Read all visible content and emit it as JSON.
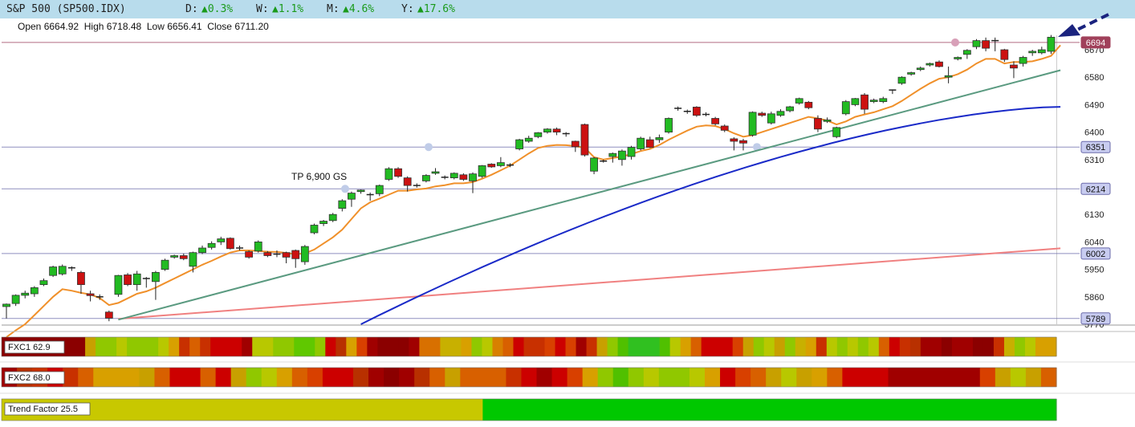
{
  "header": {
    "symbol": "S&P 500 (SP500.IDX)",
    "d_label": "D:",
    "d_value": "▲0.3%",
    "w_label": "W:",
    "w_value": "▲1.1%",
    "m_label": "M:",
    "m_value": "▲4.6%",
    "y_label": "Y:",
    "y_value": "▲17.6%"
  },
  "ohlc": {
    "open_label": "Open",
    "open": "6664.92",
    "high_label": "High",
    "high": "6718.48",
    "low_label": "Low",
    "low": "6656.41",
    "close_label": "Close",
    "close": "6711.20"
  },
  "colors": {
    "up": "#22bb22",
    "down": "#cc1111",
    "ema_fast": "#f0902a",
    "ma_mid": "#1a2ac8",
    "ma_slow": "#f08080",
    "trendline": "#5a9a80",
    "header_bg": "#b8dcec"
  },
  "chart_data": {
    "type": "candlestick",
    "title": "S&P 500 (SP500.IDX)",
    "y_ticks": [
      "6670",
      "6580",
      "6490",
      "6400",
      "6310",
      "6130",
      "6040",
      "5950",
      "5860",
      "5770"
    ],
    "ylim": [
      5770,
      6760
    ],
    "annotation": "TP 6,900 GS",
    "levels": [
      {
        "label": "6694",
        "value": 6694,
        "color": "#9a3a5a"
      },
      {
        "label": "6351",
        "value": 6351,
        "color": "#6a6aaa"
      },
      {
        "label": "6214",
        "value": 6214,
        "color": "#6a6aaa"
      },
      {
        "label": "6002",
        "value": 6002,
        "color": "#6a6aaa"
      },
      {
        "label": "5789",
        "value": 5789,
        "color": "#6a6aaa"
      }
    ],
    "candles": [
      [
        5828,
        5836,
        5789,
        5838
      ],
      [
        5838,
        5865,
        5830,
        5868
      ],
      [
        5865,
        5872,
        5855,
        5880
      ],
      [
        5870,
        5890,
        5860,
        5895
      ],
      [
        5900,
        5913,
        5895,
        5920
      ],
      [
        5930,
        5958,
        5925,
        5962
      ],
      [
        5935,
        5960,
        5930,
        5966
      ],
      [
        5955,
        5955,
        5945,
        5960
      ],
      [
        5940,
        5900,
        5870,
        5945
      ],
      [
        5870,
        5864,
        5845,
        5880
      ],
      [
        5860,
        5860,
        5850,
        5868
      ],
      [
        5810,
        5790,
        5780,
        5815
      ],
      [
        5868,
        5930,
        5860,
        5932
      ],
      [
        5932,
        5900,
        5895,
        5938
      ],
      [
        5900,
        5935,
        5880,
        5945
      ],
      [
        5920,
        5920,
        5890,
        5925
      ],
      [
        5910,
        5940,
        5850,
        5945
      ],
      [
        5950,
        5980,
        5945,
        5985
      ],
      [
        5990,
        5995,
        5985,
        5998
      ],
      [
        5995,
        5985,
        5980,
        6002
      ],
      [
        5960,
        6005,
        5940,
        6008
      ],
      [
        6005,
        6020,
        6000,
        6028
      ],
      [
        6022,
        6035,
        6015,
        6042
      ],
      [
        6040,
        6050,
        6030,
        6057
      ],
      [
        6052,
        6018,
        6015,
        6055
      ],
      [
        6020,
        6020,
        6012,
        6028
      ],
      [
        6008,
        5990,
        5985,
        6012
      ],
      [
        6010,
        6040,
        6005,
        6045
      ],
      [
        6005,
        5995,
        5990,
        6010
      ],
      [
        6000,
        6000,
        5990,
        6012
      ],
      [
        6005,
        5990,
        5970,
        6008
      ],
      [
        6012,
        5985,
        5955,
        6015
      ],
      [
        5975,
        6025,
        5965,
        6030
      ],
      [
        6070,
        6095,
        6065,
        6100
      ],
      [
        6100,
        6108,
        6092,
        6112
      ],
      [
        6110,
        6130,
        6105,
        6135
      ],
      [
        6150,
        6175,
        6140,
        6180
      ],
      [
        6180,
        6200,
        6155,
        6205
      ],
      [
        6205,
        6210,
        6198,
        6212
      ],
      [
        6195,
        6195,
        6175,
        6202
      ],
      [
        6198,
        6225,
        6190,
        6228
      ],
      [
        6245,
        6280,
        6240,
        6285
      ],
      [
        6280,
        6255,
        6250,
        6285
      ],
      [
        6250,
        6225,
        6205,
        6255
      ],
      [
        6225,
        6222,
        6218,
        6232
      ],
      [
        6240,
        6258,
        6235,
        6262
      ],
      [
        6265,
        6270,
        6260,
        6282
      ],
      [
        6250,
        6252,
        6245,
        6258
      ],
      [
        6250,
        6265,
        6245,
        6268
      ],
      [
        6260,
        6245,
        6240,
        6265
      ],
      [
        6240,
        6263,
        6200,
        6268
      ],
      [
        6255,
        6290,
        6250,
        6292
      ],
      [
        6295,
        6286,
        6283,
        6298
      ],
      [
        6290,
        6300,
        6285,
        6318
      ],
      [
        6292,
        6290,
        6285,
        6298
      ],
      [
        6345,
        6375,
        6340,
        6378
      ],
      [
        6370,
        6380,
        6365,
        6388
      ],
      [
        6385,
        6398,
        6380,
        6400
      ],
      [
        6400,
        6410,
        6395,
        6413
      ],
      [
        6410,
        6400,
        6390,
        6415
      ],
      [
        6395,
        6395,
        6385,
        6400
      ],
      [
        6370,
        6352,
        6335,
        6372
      ],
      [
        6425,
        6325,
        6320,
        6428
      ],
      [
        6272,
        6315,
        6262,
        6318
      ],
      [
        6305,
        6305,
        6300,
        6310
      ],
      [
        6320,
        6330,
        6300,
        6333
      ],
      [
        6310,
        6338,
        6290,
        6343
      ],
      [
        6320,
        6350,
        6310,
        6355
      ],
      [
        6345,
        6380,
        6340,
        6385
      ],
      [
        6375,
        6350,
        6348,
        6385
      ],
      [
        6375,
        6382,
        6365,
        6392
      ],
      [
        6400,
        6445,
        6395,
        6448
      ],
      [
        6475,
        6478,
        6470,
        6484
      ],
      [
        6467,
        6468,
        6460,
        6474
      ],
      [
        6482,
        6455,
        6450,
        6485
      ],
      [
        6458,
        6457,
        6452,
        6465
      ],
      [
        6445,
        6427,
        6422,
        6450
      ],
      [
        6420,
        6406,
        6400,
        6425
      ],
      [
        6378,
        6370,
        6340,
        6383
      ],
      [
        6372,
        6364,
        6340,
        6378
      ],
      [
        6390,
        6465,
        6385,
        6468
      ],
      [
        6462,
        6455,
        6450,
        6467
      ],
      [
        6430,
        6460,
        6425,
        6467
      ],
      [
        6455,
        6468,
        6450,
        6475
      ],
      [
        6470,
        6483,
        6465,
        6486
      ],
      [
        6495,
        6510,
        6490,
        6513
      ],
      [
        6498,
        6480,
        6475,
        6502
      ],
      [
        6445,
        6410,
        6400,
        6455
      ],
      [
        6435,
        6440,
        6430,
        6448
      ],
      [
        6385,
        6415,
        6380,
        6418
      ],
      [
        6460,
        6500,
        6455,
        6505
      ],
      [
        6490,
        6510,
        6485,
        6512
      ],
      [
        6522,
        6475,
        6460,
        6528
      ],
      [
        6500,
        6505,
        6495,
        6510
      ],
      [
        6500,
        6510,
        6495,
        6516
      ],
      [
        6535,
        6538,
        6525,
        6540
      ],
      [
        6560,
        6580,
        6555,
        6583
      ],
      [
        6590,
        6595,
        6585,
        6598
      ],
      [
        6605,
        6610,
        6600,
        6615
      ],
      [
        6620,
        6625,
        6615,
        6628
      ],
      [
        6630,
        6615,
        6612,
        6635
      ],
      [
        6580,
        6585,
        6560,
        6615
      ],
      [
        6640,
        6645,
        6635,
        6648
      ],
      [
        6655,
        6668,
        6640,
        6672
      ],
      [
        6680,
        6700,
        6672,
        6705
      ],
      [
        6700,
        6675,
        6665,
        6710
      ],
      [
        6700,
        6700,
        6665,
        6710
      ],
      [
        6670,
        6638,
        6630,
        6673
      ],
      [
        6620,
        6610,
        6577,
        6632
      ],
      [
        6625,
        6645,
        6615,
        6650
      ],
      [
        6660,
        6665,
        6650,
        6670
      ],
      [
        6660,
        6670,
        6655,
        6680
      ],
      [
        6664.92,
        6711.2,
        6656.41,
        6718.48
      ]
    ],
    "ema_fast": [
      5728,
      5750,
      5770,
      5800,
      5830,
      5860,
      5885,
      5880,
      5873,
      5868,
      5856,
      5833,
      5840,
      5855,
      5870,
      5878,
      5890,
      5905,
      5920,
      5935,
      5950,
      5965,
      5978,
      5992,
      6005,
      6012,
      6012,
      6010,
      6008,
      6007,
      6004,
      6000,
      6002,
      6015,
      6035,
      6055,
      6080,
      6115,
      6150,
      6170,
      6182,
      6195,
      6208,
      6208,
      6212,
      6215,
      6222,
      6226,
      6232,
      6232,
      6236,
      6247,
      6260,
      6275,
      6290,
      6310,
      6330,
      6348,
      6355,
      6358,
      6357,
      6354,
      6349,
      6318,
      6310,
      6315,
      6320,
      6328,
      6338,
      6345,
      6358,
      6375,
      6390,
      6405,
      6418,
      6422,
      6420,
      6410,
      6396,
      6385,
      6390,
      6400,
      6410,
      6420,
      6430,
      6440,
      6450,
      6445,
      6438,
      6425,
      6435,
      6450,
      6458,
      6465,
      6475,
      6485,
      6502,
      6522,
      6542,
      6560,
      6575,
      6580,
      6590,
      6605,
      6625,
      6640,
      6640,
      6625,
      6630,
      6630,
      6632,
      6640,
      6650,
      6685
    ],
    "ma_mid_endpoints": [
      [
        38,
        5770
      ],
      [
        113,
        6483
      ]
    ],
    "ma_slow_endpoints": [
      [
        12,
        5788
      ],
      [
        113,
        6019
      ]
    ],
    "trendline": [
      [
        12,
        5785
      ],
      [
        113,
        6603
      ]
    ],
    "bands": [
      {
        "label": "FXC1",
        "value": "62.9",
        "colors": [
          "#8b0000",
          "#8b0000",
          "#8b0000",
          "#8b0000",
          "#8b0000",
          "#8b0000",
          "#8b0000",
          "#8b0000",
          "#c8a000",
          "#90c800",
          "#90c800",
          "#b8c800",
          "#90c800",
          "#90c800",
          "#90c800",
          "#b8c800",
          "#d8a000",
          "#c83000",
          "#d86000",
          "#c83000",
          "#cc0000",
          "#cc0000",
          "#cc0000",
          "#a00000",
          "#b8c800",
          "#b8c800",
          "#90c800",
          "#90c800",
          "#60c800",
          "#60c800",
          "#90c800",
          "#cc0000",
          "#b83000",
          "#d8a000",
          "#d84000",
          "#a00000",
          "#8b0000",
          "#8b0000",
          "#8b0000",
          "#a00000",
          "#d87000",
          "#d87000",
          "#c8b000",
          "#c8b000",
          "#d8a000",
          "#90c800",
          "#b8c800",
          "#d88000",
          "#d86000",
          "#cc0000",
          "#c83000",
          "#c83000",
          "#d84000",
          "#cc0000",
          "#d84000",
          "#a00000",
          "#c83000",
          "#c8a000",
          "#90c800",
          "#50c000",
          "#30c020",
          "#30c020",
          "#30c020",
          "#50c000",
          "#b8c800",
          "#d8a000",
          "#d86000",
          "#cc0000",
          "#cc0000",
          "#cc0000",
          "#d84000",
          "#c8a000",
          "#90c800",
          "#b8c800",
          "#c8a000",
          "#90c800",
          "#c8b000",
          "#d8a000",
          "#c83000",
          "#b8c800",
          "#90c800",
          "#b8c800",
          "#90c800",
          "#b8c800",
          "#d86000",
          "#cc0000",
          "#c83000",
          "#b83000",
          "#a00000",
          "#a00000",
          "#8b0000",
          "#a00000",
          "#a00000",
          "#8b0000",
          "#8b0000",
          "#c83000",
          "#c8b000",
          "#90c800",
          "#b8c800",
          "#d8a000",
          "#d8a000"
        ]
      },
      {
        "label": "FXC2",
        "value": "68.0",
        "colors": [
          "#a00000",
          "#b83000",
          "#c83000",
          "#cc0000",
          "#c83000",
          "#d86000",
          "#d8a000",
          "#d8a000",
          "#d8a000",
          "#c8a000",
          "#d86000",
          "#cc0000",
          "#cc0000",
          "#d86000",
          "#cc0000",
          "#c8a000",
          "#90c800",
          "#b8c800",
          "#d8a000",
          "#d86000",
          "#d84000",
          "#cc0000",
          "#cc0000",
          "#b83000",
          "#a00000",
          "#8b0000",
          "#a00000",
          "#b83000",
          "#d86000",
          "#c8a000",
          "#d86000",
          "#d86000",
          "#d86000",
          "#c83000",
          "#cc0000",
          "#a00000",
          "#cc0000",
          "#d84000",
          "#d8a000",
          "#90c800",
          "#50c000",
          "#90c800",
          "#b8c800",
          "#90c800",
          "#90c800",
          "#b8c800",
          "#d8a000",
          "#cc0000",
          "#d84000",
          "#d86000",
          "#c8a000",
          "#b8c800",
          "#c8a000",
          "#d8a000",
          "#d86000",
          "#cc0000",
          "#cc0000",
          "#cc0000",
          "#a00000",
          "#a00000",
          "#a00000",
          "#a00000",
          "#a00000",
          "#a00000",
          "#d84000",
          "#c8a000",
          "#b8c800",
          "#c8a000",
          "#d86000"
        ]
      },
      {
        "label": "Trend Factor",
        "value": "25.5",
        "colors": [
          "#c8c800",
          "#c8c800",
          "#c8c800",
          "#c8c800",
          "#c8c800",
          "#c8c800",
          "#c8c800",
          "#c8c800",
          "#c8c800",
          "#c8c800",
          "#c8c800",
          "#c8c800",
          "#c8c800",
          "#c8c800",
          "#c8c800",
          "#c8c800",
          "#c8c800",
          "#c8c800",
          "#c8c800",
          "#c8c800",
          "#c8c800",
          "#c8c800",
          "#c8c800",
          "#c8c800",
          "#c8c800",
          "#c8c800",
          "#00c800",
          "#00c800",
          "#00c800",
          "#00c800",
          "#00c800",
          "#00c800",
          "#00c800",
          "#00c800",
          "#00c800",
          "#00c800",
          "#00c800",
          "#00c800",
          "#00c800",
          "#00c800",
          "#00c800",
          "#00c800",
          "#00c800",
          "#00c800",
          "#00c800",
          "#00c800",
          "#00c800",
          "#00c800",
          "#00c800",
          "#00c800",
          "#00c800",
          "#00c800",
          "#00c800",
          "#00c800",
          "#00c800",
          "#00c800",
          "#00c800"
        ]
      }
    ]
  }
}
